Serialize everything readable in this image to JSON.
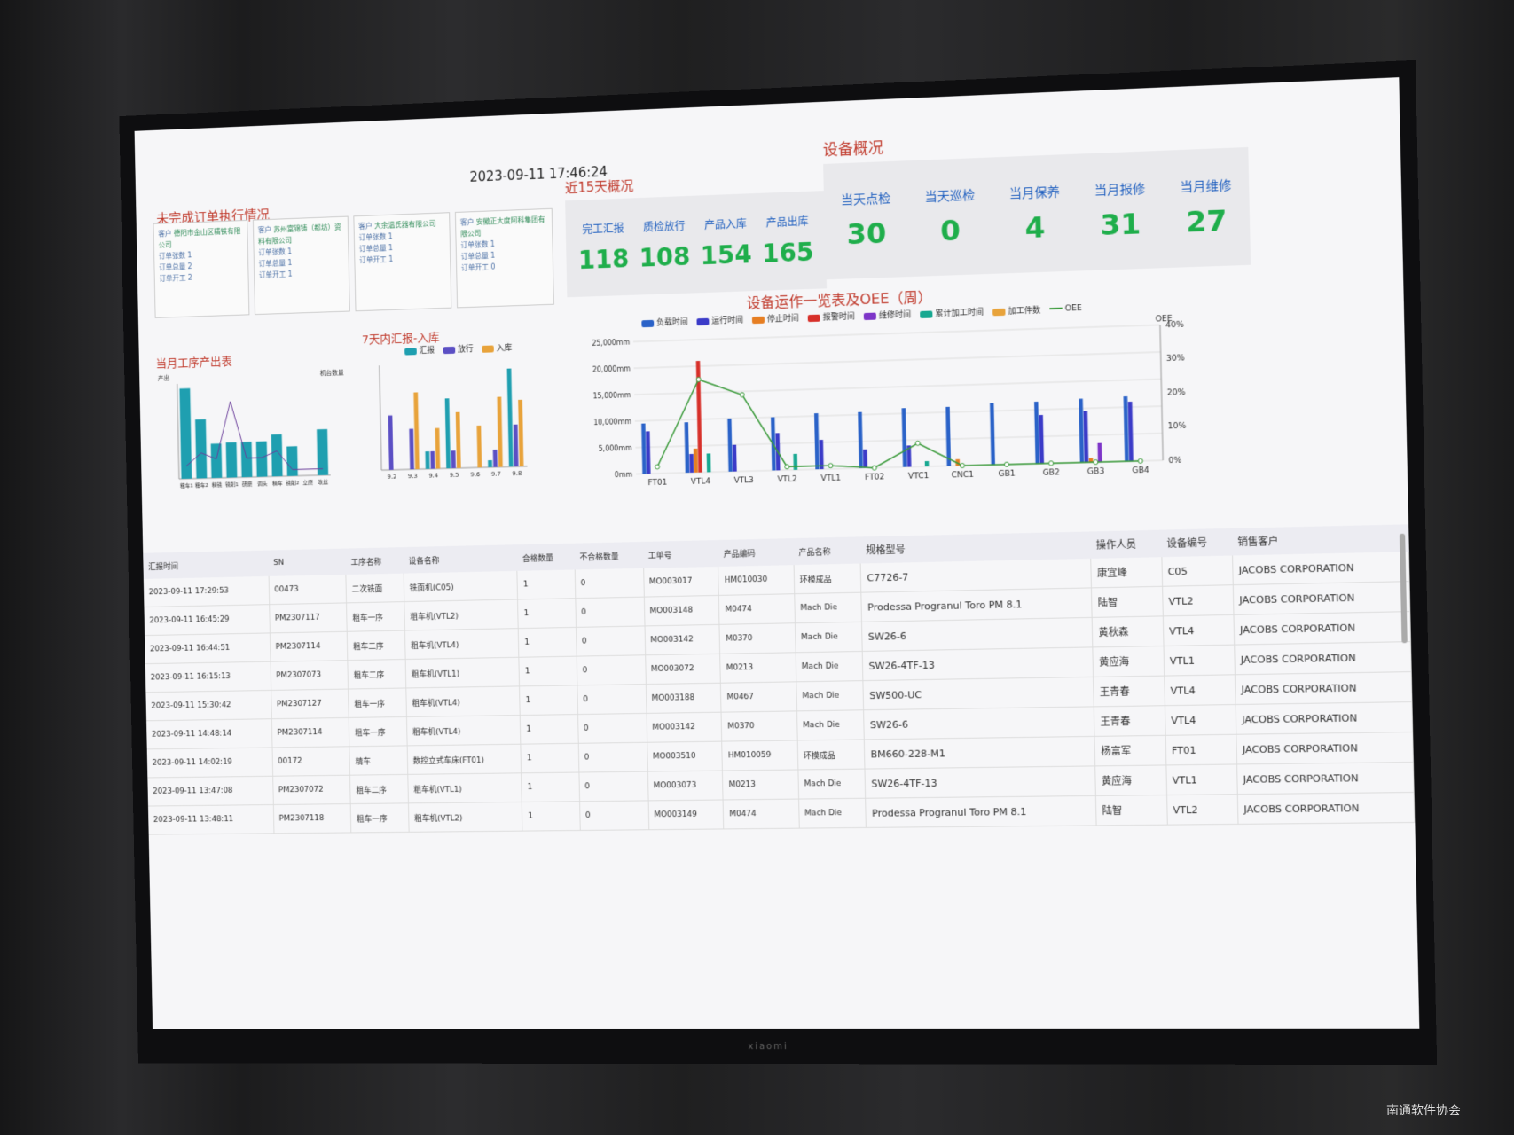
{
  "datetime": "2023-09-11 17:46:24",
  "titles": {
    "orders": "未完成订单执行情况",
    "summary15": "近15天概况",
    "equipment": "设备概况",
    "monthly": "当月工序产出表",
    "weekly": "7天内汇报-入库",
    "oee": "设备运作一览表及OEE（周）"
  },
  "orders": [
    {
      "cust_label": "客户",
      "cust": "德阳市金山区精铁有限公司",
      "l1": "订单张数 1",
      "l2": "订单总量 2",
      "l3": "订单开工 2"
    },
    {
      "cust_label": "客户",
      "cust": "苏州富锦铸（都坊）资料有限公司",
      "l1": "订单张数 1",
      "l2": "订单总量 1",
      "l3": "订单开工 1"
    },
    {
      "cust_label": "客户",
      "cust": "大余温氏器有限公司",
      "l1": "订单张数 1",
      "l2": "订单总量 1",
      "l3": "订单开工 1"
    },
    {
      "cust_label": "客户",
      "cust": "安徽正大度阿科集团有限公司",
      "l1": "订单张数 1",
      "l2": "订单总量 1",
      "l3": "订单开工 0"
    }
  ],
  "summary15": [
    {
      "label": "完工汇报",
      "value": "118"
    },
    {
      "label": "质检放行",
      "value": "108"
    },
    {
      "label": "产品入库",
      "value": "154"
    },
    {
      "label": "产品出库",
      "value": "165"
    }
  ],
  "equipment": [
    {
      "label": "当天点检",
      "value": "30"
    },
    {
      "label": "当天巡检",
      "value": "0"
    },
    {
      "label": "当月保养",
      "value": "4"
    },
    {
      "label": "当月报修",
      "value": "31"
    },
    {
      "label": "当月维修",
      "value": "27"
    }
  ],
  "chart_data": [
    {
      "type": "bar",
      "title": "当月工序产出表",
      "ylabel": "产出",
      "y2label": "机台数量",
      "categories": [
        "粗车1",
        "粗车2",
        "精铣",
        "铣削1",
        "研磨",
        "调头",
        "精车",
        "铣削2",
        "立磨",
        "攻丝"
      ],
      "values": [
        95,
        62,
        36,
        37,
        37,
        37,
        44,
        31,
        0,
        48
      ],
      "ylim": [
        0,
        100
      ],
      "y2lim": [
        0,
        15
      ],
      "line": [
        2,
        4,
        3,
        12,
        3,
        3,
        4,
        1,
        1,
        1
      ],
      "colors": {
        "bar": "#1f9fb0",
        "line": "#6a3d9a"
      }
    },
    {
      "type": "bar",
      "title": "7天内汇报-入库",
      "categories": [
        "9.2",
        "9.3",
        "9.4",
        "9.5",
        "9.6",
        "9.7",
        "9.8"
      ],
      "ylim": [
        0,
        15
      ],
      "series": [
        {
          "name": "汇报",
          "values": [
            0,
            0,
            2.5,
            10,
            0,
            1,
            14
          ],
          "color": "#1f9fb0"
        },
        {
          "name": "放行",
          "values": [
            7.8,
            5.8,
            2.5,
            2.5,
            0,
            2.5,
            6
          ],
          "color": "#5b4fc4"
        },
        {
          "name": "入库",
          "values": [
            0,
            11,
            5.8,
            8,
            6,
            10,
            9.5
          ],
          "color": "#e8a33b"
        }
      ]
    },
    {
      "type": "bar",
      "title": "设备运作一览表及OEE（周）",
      "ylabel": "",
      "y2label": "OEE",
      "categories": [
        "FT01",
        "VTL4",
        "VTL3",
        "VTL2",
        "VTL1",
        "FT02",
        "VTC1",
        "CNC1",
        "GB1",
        "GB2",
        "GB3",
        "GB4"
      ],
      "ylim": [
        0,
        25000
      ],
      "y_ticks": [
        "0mm",
        "5,000mm",
        "10,000mm",
        "15,000mm",
        "20,000mm",
        "25,000mm"
      ],
      "y2_ticks": [
        "0%",
        "10%",
        "20%",
        "30%",
        "40%"
      ],
      "series": [
        {
          "name": "负载时间",
          "color": "#2a62c8",
          "values": [
            9500,
            9500,
            10000,
            10000,
            10500,
            10500,
            11000,
            11000,
            11500,
            11500,
            11800,
            12000
          ]
        },
        {
          "name": "运行时间",
          "color": "#3b3bc8",
          "values": [
            8000,
            3500,
            5000,
            7000,
            5500,
            3500,
            4000,
            0,
            0,
            9000,
            9500,
            11000
          ]
        },
        {
          "name": "停止时间",
          "color": "#e67e22",
          "values": [
            0,
            4500,
            0,
            0,
            0,
            0,
            0,
            1200,
            0,
            0,
            800,
            0
          ]
        },
        {
          "name": "报警时间",
          "color": "#d7302a",
          "values": [
            0,
            21000,
            0,
            0,
            0,
            0,
            0,
            0,
            0,
            0,
            0,
            0
          ]
        },
        {
          "name": "维修时间",
          "color": "#7d35c8",
          "values": [
            0,
            0,
            0,
            0,
            0,
            0,
            0,
            0,
            0,
            0,
            3500,
            0
          ]
        },
        {
          "name": "累计加工时间",
          "color": "#17a891",
          "values": [
            0,
            3500,
            0,
            3000,
            0,
            0,
            1000,
            0,
            0,
            0,
            0,
            0
          ]
        },
        {
          "name": "加工件数",
          "color": "#e8a33b",
          "values": [
            0,
            0,
            0,
            0,
            0,
            0,
            0,
            0,
            0,
            0,
            0,
            0
          ]
        }
      ],
      "oee": {
        "name": "OEE",
        "color": "#3a9a3a",
        "values": [
          2,
          28,
          23,
          1,
          1,
          0,
          7,
          0,
          0,
          0,
          0,
          0
        ]
      }
    }
  ],
  "table": {
    "headers": [
      "汇报时间",
      "SN",
      "工序名称",
      "设备名称",
      "合格数量",
      "不合格数量",
      "工单号",
      "产品编码",
      "产品名称",
      "规格型号",
      "操作人员",
      "设备编号",
      "销售客户"
    ],
    "rows": [
      [
        "2023-09-11 17:29:53",
        "00473",
        "二次铣面",
        "铣面机(C05)",
        "1",
        "0",
        "MO003017",
        "HM010030",
        "环模成品",
        "C7726-7",
        "康宜峰",
        "C05",
        "JACOBS CORPORATION"
      ],
      [
        "2023-09-11 16:45:29",
        "PM2307117",
        "粗车一序",
        "粗车机(VTL2)",
        "1",
        "0",
        "MO003148",
        "M0474",
        "Mach Die",
        "Prodessa Progranul Toro PM 8.1",
        "陆智",
        "VTL2",
        "JACOBS CORPORATION"
      ],
      [
        "2023-09-11 16:44:51",
        "PM2307114",
        "粗车二序",
        "粗车机(VTL4)",
        "1",
        "0",
        "MO003142",
        "M0370",
        "Mach Die",
        "SW26-6",
        "黄秋森",
        "VTL4",
        "JACOBS CORPORATION"
      ],
      [
        "2023-09-11 16:15:13",
        "PM2307073",
        "粗车二序",
        "粗车机(VTL1)",
        "1",
        "0",
        "MO003072",
        "M0213",
        "Mach Die",
        "SW26-4TF-13",
        "黄应海",
        "VTL1",
        "JACOBS CORPORATION"
      ],
      [
        "2023-09-11 15:30:42",
        "PM2307127",
        "粗车一序",
        "粗车机(VTL4)",
        "1",
        "0",
        "MO003188",
        "M0467",
        "Mach Die",
        "SW500-UC",
        "王青春",
        "VTL4",
        "JACOBS CORPORATION"
      ],
      [
        "2023-09-11 14:48:14",
        "PM2307114",
        "粗车一序",
        "粗车机(VTL4)",
        "1",
        "0",
        "MO003142",
        "M0370",
        "Mach Die",
        "SW26-6",
        "王青春",
        "VTL4",
        "JACOBS CORPORATION"
      ],
      [
        "2023-09-11 14:02:19",
        "00172",
        "精车",
        "数控立式车床(FT01)",
        "1",
        "0",
        "MO003510",
        "HM010059",
        "环模成品",
        "BM660-228-M1",
        "杨富军",
        "FT01",
        "JACOBS CORPORATION"
      ],
      [
        "2023-09-11 13:47:08",
        "PM2307072",
        "粗车二序",
        "粗车机(VTL1)",
        "1",
        "0",
        "MO003073",
        "M0213",
        "Mach Die",
        "SW26-4TF-13",
        "黄应海",
        "VTL1",
        "JACOBS CORPORATION"
      ],
      [
        "2023-09-11 13:48:11",
        "PM2307118",
        "粗车一序",
        "粗车机(VTL2)",
        "1",
        "0",
        "MO003149",
        "M0474",
        "Mach Die",
        "Prodessa Progranul Toro PM 8.1",
        "陆智",
        "VTL2",
        "JACOBS CORPORATION"
      ]
    ]
  },
  "brand": "xiaomi",
  "watermark": "南通软件协会"
}
